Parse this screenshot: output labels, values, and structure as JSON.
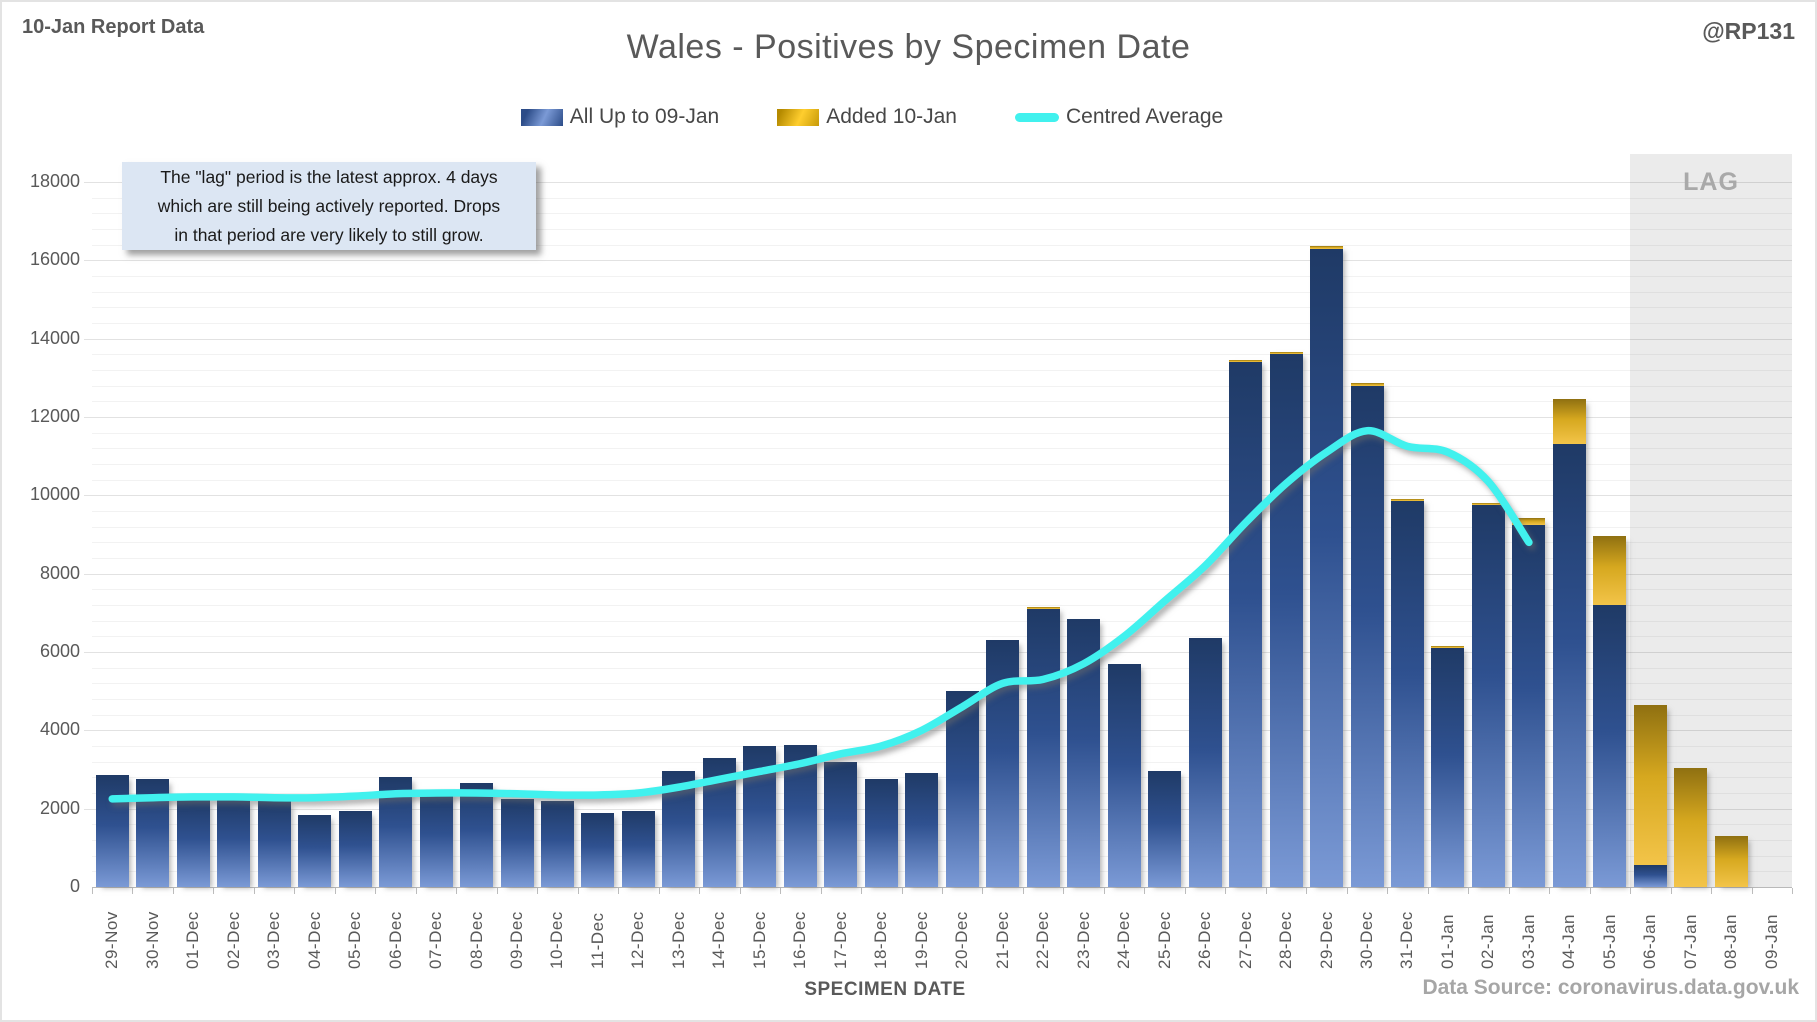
{
  "header": {
    "report_label": "10-Jan Report Data",
    "title": "Wales - Positives by Specimen Date",
    "handle": "@RP131"
  },
  "legend": {
    "blue_label": "All Up to 09-Jan",
    "gold_label": "Added 10-Jan",
    "line_label": "Centred Average"
  },
  "annotation": {
    "line1": "The \"lag\" period is the latest approx. 4 days",
    "line2": "which are still being actively reported. Drops",
    "line3": "in that period are very likely to still grow."
  },
  "lag_label": "LAG",
  "x_axis_title": "SPECIMEN DATE",
  "footer": "Data Source: coronavirus.data.gov.uk",
  "colors": {
    "blue_top": "#1f3a66",
    "blue_mid": "#2f5190",
    "blue_bottom": "#7b9ad6",
    "gold_top": "#8f7011",
    "gold_mid": "#d6a81f",
    "gold_bottom": "#f3c449",
    "line": "#41f1ee",
    "lag_band": "#ebebeb",
    "text_gray": "#595959",
    "text_light": "#a6a6a6"
  },
  "chart_data": {
    "type": "bar",
    "title": "Wales - Positives by Specimen Date",
    "xlabel": "SPECIMEN DATE",
    "ylabel": "",
    "ylim": [
      0,
      18000
    ],
    "y_major_step": 2000,
    "y_minor_step": 400,
    "grid": true,
    "legend_position": "top",
    "categories": [
      "29-Nov",
      "30-Nov",
      "01-Dec",
      "02-Dec",
      "03-Dec",
      "04-Dec",
      "05-Dec",
      "06-Dec",
      "07-Dec",
      "08-Dec",
      "09-Dec",
      "10-Dec",
      "11-Dec",
      "12-Dec",
      "13-Dec",
      "14-Dec",
      "15-Dec",
      "16-Dec",
      "17-Dec",
      "18-Dec",
      "19-Dec",
      "20-Dec",
      "21-Dec",
      "22-Dec",
      "23-Dec",
      "24-Dec",
      "25-Dec",
      "26-Dec",
      "27-Dec",
      "28-Dec",
      "29-Dec",
      "30-Dec",
      "31-Dec",
      "01-Jan",
      "02-Jan",
      "03-Jan",
      "04-Jan",
      "05-Jan",
      "06-Jan",
      "07-Jan",
      "08-Jan",
      "09-Jan"
    ],
    "series": [
      {
        "name": "All Up to 09-Jan",
        "type": "bar",
        "stack": "positives",
        "values": [
          2850,
          2750,
          2250,
          2250,
          2200,
          1850,
          1950,
          2800,
          2450,
          2650,
          2250,
          2200,
          1900,
          1950,
          2950,
          3300,
          3600,
          3620,
          3200,
          2750,
          2900,
          5000,
          6300,
          7100,
          6850,
          5700,
          2950,
          6350,
          13400,
          13600,
          16300,
          12800,
          9850,
          6100,
          9750,
          9250,
          11300,
          7200,
          550,
          0,
          0,
          0
        ]
      },
      {
        "name": "Added 10-Jan",
        "type": "bar",
        "stack": "positives",
        "values": [
          0,
          0,
          0,
          0,
          0,
          0,
          0,
          0,
          0,
          0,
          0,
          0,
          0,
          0,
          0,
          0,
          0,
          0,
          0,
          0,
          0,
          0,
          0,
          60,
          0,
          0,
          0,
          0,
          50,
          60,
          70,
          60,
          50,
          60,
          60,
          170,
          1150,
          1750,
          4100,
          3050,
          1300,
          0
        ]
      },
      {
        "name": "Centred Average",
        "type": "line",
        "values": [
          2250,
          2280,
          2300,
          2300,
          2280,
          2280,
          2320,
          2380,
          2400,
          2400,
          2380,
          2350,
          2350,
          2400,
          2550,
          2750,
          2950,
          3150,
          3400,
          3600,
          4000,
          4600,
          5200,
          5300,
          5700,
          6400,
          7300,
          8200,
          9300,
          10300,
          11100,
          11650,
          11250,
          11100,
          10350,
          8800,
          null,
          null,
          null,
          null,
          null,
          null
        ]
      }
    ],
    "lag_region": {
      "start_category": "06-Jan",
      "end_category": "09-Jan"
    }
  }
}
